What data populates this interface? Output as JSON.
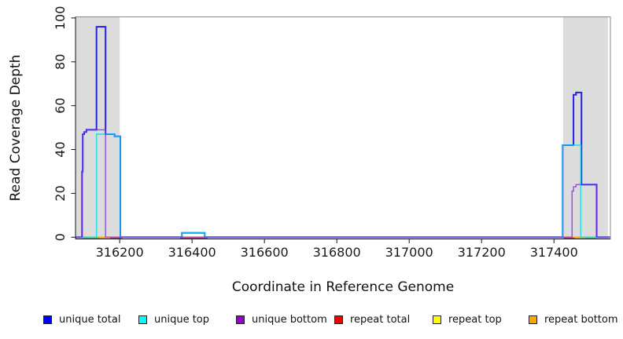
{
  "figure": {
    "background": "#ffffff",
    "band_color": "#dcdcdc"
  },
  "chart_data": {
    "type": "line",
    "title": "",
    "xlabel": "Coordinate in Reference Genome",
    "ylabel": "Read Coverage Depth",
    "xlim": [
      316078,
      317556
    ],
    "ylim": [
      0,
      100.5
    ],
    "step_mode": "post",
    "grid": false,
    "legend_position": "bottom",
    "x_ticks": [
      316200,
      316400,
      316600,
      316800,
      317000,
      317200,
      317400
    ],
    "y_ticks": [
      0,
      20,
      40,
      60,
      80,
      100
    ],
    "highlight_bands": [
      {
        "x0": 316078,
        "x1": 316200
      },
      {
        "x0": 317425,
        "x1": 317549
      }
    ],
    "band_color": "#dcdcdc",
    "series": [
      {
        "name": "repeat total",
        "color": "#ee2233",
        "width": 1.2,
        "opacity": 1,
        "steps": [
          [
            316078,
            0
          ]
        ]
      },
      {
        "name": "repeat top",
        "color": "#ffff00",
        "width": 1.2,
        "opacity": 1,
        "steps": [
          [
            316078,
            0
          ]
        ]
      },
      {
        "name": "repeat bottom",
        "color": "#ffa500",
        "width": 1.2,
        "opacity": 1,
        "steps": [
          [
            316078,
            0
          ]
        ]
      },
      {
        "name": "unique total",
        "color": "#2323eb",
        "width": 2,
        "opacity": 1,
        "steps": [
          [
            316078,
            0
          ],
          [
            316096,
            30
          ],
          [
            316098,
            47
          ],
          [
            316102,
            48
          ],
          [
            316108,
            49
          ],
          [
            316136,
            96
          ],
          [
            316161,
            47
          ],
          [
            316186,
            46
          ],
          [
            316202,
            0
          ],
          [
            316372,
            2
          ],
          [
            316435,
            0
          ],
          [
            317424,
            42
          ],
          [
            317454,
            65
          ],
          [
            317461,
            66
          ],
          [
            317476,
            24
          ],
          [
            317518,
            0
          ]
        ]
      },
      {
        "name": "unique top",
        "color": "#00dcee",
        "width": 1.6,
        "opacity": 0.8,
        "steps": [
          [
            316078,
            0
          ],
          [
            316136,
            47
          ],
          [
            316186,
            46
          ],
          [
            316202,
            0
          ],
          [
            316372,
            2
          ],
          [
            316435,
            0
          ],
          [
            317424,
            42
          ],
          [
            317474,
            0
          ]
        ]
      },
      {
        "name": "unique bottom",
        "color": "#7d2ae8",
        "width": 1.5,
        "opacity": 0.75,
        "steps": [
          [
            316078,
            0
          ],
          [
            316096,
            30
          ],
          [
            316098,
            47
          ],
          [
            316102,
            48
          ],
          [
            316108,
            49
          ],
          [
            316161,
            0
          ],
          [
            317450,
            21
          ],
          [
            317454,
            23
          ],
          [
            317461,
            24
          ],
          [
            317518,
            0
          ]
        ]
      }
    ],
    "baseline_segments": [
      {
        "series": "repeat top",
        "render_color": "#4ec66a",
        "x0": 316098,
        "x1": 316146
      },
      {
        "series": "repeat bottom",
        "render_color": "#ff9f1a",
        "x0": 316146,
        "x1": 316174
      },
      {
        "series": "repeat total",
        "render_color": "#ee3347",
        "x0": 316174,
        "x1": 316207
      },
      {
        "series": "repeat total",
        "render_color": "#ee3347",
        "x0": 316367,
        "x1": 316443
      },
      {
        "series": "repeat total",
        "render_color": "#ee3347",
        "x0": 317427,
        "x1": 317457
      },
      {
        "series": "repeat bottom",
        "render_color": "#ff9f1a",
        "x0": 317457,
        "x1": 317486
      },
      {
        "series": "repeat top",
        "render_color": "#4ec66a",
        "x0": 317486,
        "x1": 317518
      }
    ]
  },
  "legend": {
    "items": [
      {
        "label": "unique total",
        "color": "#0000ff"
      },
      {
        "label": "unique top",
        "color": "#00ffff"
      },
      {
        "label": "unique bottom",
        "color": "#9400d3"
      },
      {
        "label": "repeat total",
        "color": "#ee0000"
      },
      {
        "label": "repeat top",
        "color": "#ffff00"
      },
      {
        "label": "repeat bottom",
        "color": "#ffa500"
      }
    ]
  }
}
